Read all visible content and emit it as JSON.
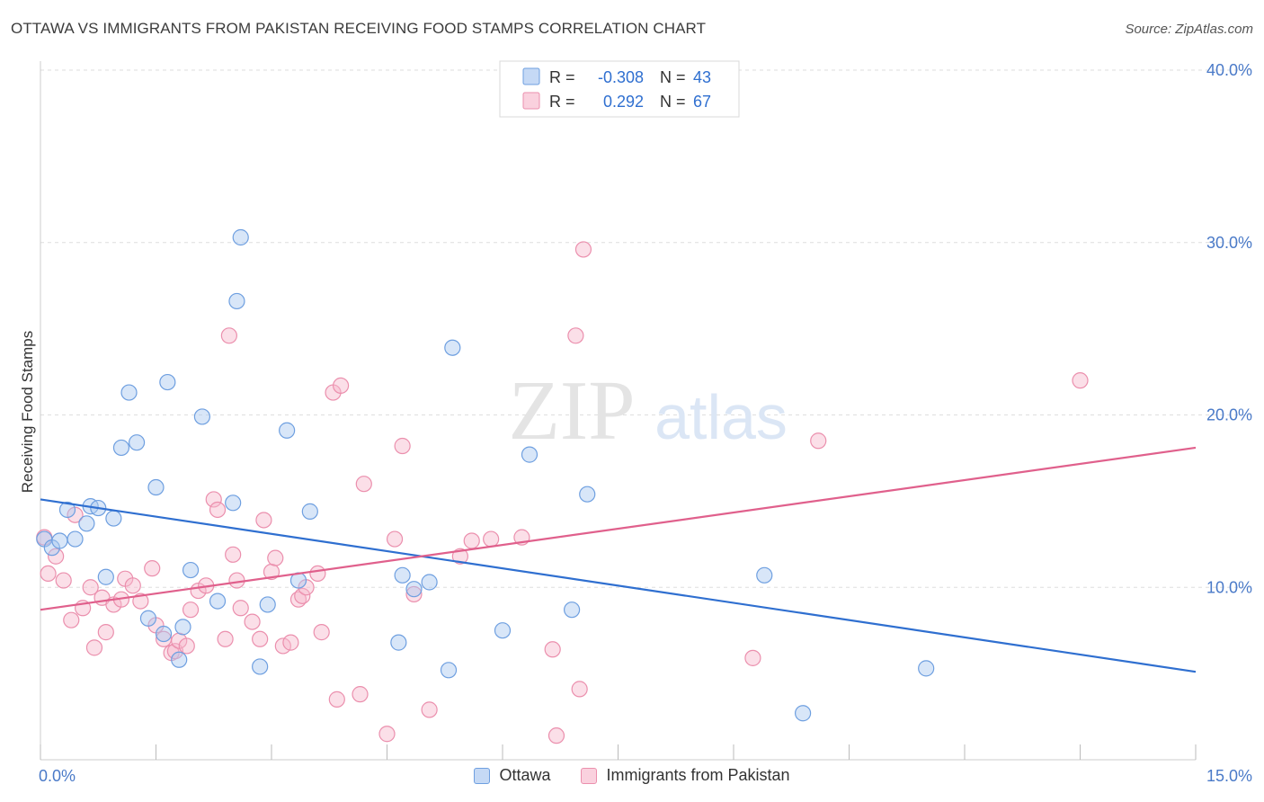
{
  "title": "OTTAWA VS IMMIGRANTS FROM PAKISTAN RECEIVING FOOD STAMPS CORRELATION CHART",
  "source": "Source: ZipAtlas.com",
  "watermark": {
    "zip": "ZIP",
    "atlas": "atlas"
  },
  "colors": {
    "blue_fill": "#a9c8f0",
    "blue_stroke": "#6e9fe0",
    "blue_line": "#2f6fd0",
    "pink_fill": "#f7b9cc",
    "pink_stroke": "#eb8fad",
    "pink_line": "#e0608c",
    "axis_text": "#4a7ac8",
    "grid": "#dedede"
  },
  "chart_data": {
    "type": "scatter",
    "title": "OTTAWA VS IMMIGRANTS FROM PAKISTAN RECEIVING FOOD STAMPS CORRELATION CHART",
    "xlabel": "",
    "ylabel": "Receiving Food Stamps",
    "xlim": [
      0,
      15
    ],
    "ylim": [
      0,
      40
    ],
    "x_tick_labels": [
      "0.0%",
      "15.0%"
    ],
    "y_ticks": [
      10,
      20,
      30,
      40
    ],
    "y_tick_labels": [
      "10.0%",
      "20.0%",
      "30.0%",
      "40.0%"
    ],
    "grid": true,
    "legend": [
      {
        "series": "Ottawa",
        "r_label": "R =",
        "r_value": "-0.308",
        "n_label": "N =",
        "n_value": "43"
      },
      {
        "series": "Immigrants from Pakistan",
        "r_label": "R =",
        "r_value": "0.292",
        "n_label": "N =",
        "n_value": "67"
      }
    ],
    "series": [
      {
        "name": "Ottawa",
        "color": "#6e9fe0",
        "trend": {
          "x0": 0,
          "y0": 15.1,
          "x1": 15,
          "y1": 5.1
        },
        "points": [
          [
            0.05,
            12.8
          ],
          [
            0.15,
            12.3
          ],
          [
            0.25,
            12.7
          ],
          [
            0.35,
            14.5
          ],
          [
            0.45,
            12.8
          ],
          [
            0.6,
            13.7
          ],
          [
            0.65,
            14.7
          ],
          [
            0.75,
            14.6
          ],
          [
            0.85,
            10.6
          ],
          [
            0.95,
            14.0
          ],
          [
            1.05,
            18.1
          ],
          [
            1.15,
            21.3
          ],
          [
            1.25,
            18.4
          ],
          [
            1.4,
            8.2
          ],
          [
            1.5,
            15.8
          ],
          [
            1.6,
            7.3
          ],
          [
            1.65,
            21.9
          ],
          [
            1.8,
            5.8
          ],
          [
            1.85,
            7.7
          ],
          [
            1.95,
            11.0
          ],
          [
            2.1,
            19.9
          ],
          [
            2.3,
            9.2
          ],
          [
            2.5,
            14.9
          ],
          [
            2.55,
            26.6
          ],
          [
            2.6,
            30.3
          ],
          [
            2.85,
            5.4
          ],
          [
            2.95,
            9.0
          ],
          [
            3.2,
            19.1
          ],
          [
            3.35,
            10.4
          ],
          [
            3.5,
            14.4
          ],
          [
            4.65,
            6.8
          ],
          [
            4.7,
            10.7
          ],
          [
            4.85,
            9.9
          ],
          [
            5.05,
            10.3
          ],
          [
            5.3,
            5.2
          ],
          [
            5.35,
            23.9
          ],
          [
            6.0,
            7.5
          ],
          [
            6.35,
            17.7
          ],
          [
            6.9,
            8.7
          ],
          [
            7.1,
            15.4
          ],
          [
            9.4,
            10.7
          ],
          [
            9.9,
            2.7
          ],
          [
            11.5,
            5.3
          ]
        ]
      },
      {
        "name": "Immigrants from Pakistan",
        "color": "#eb8fad",
        "trend": {
          "x0": 0,
          "y0": 8.7,
          "x1": 15,
          "y1": 18.1
        },
        "points": [
          [
            0.05,
            12.9
          ],
          [
            0.1,
            10.8
          ],
          [
            0.2,
            11.8
          ],
          [
            0.3,
            10.4
          ],
          [
            0.4,
            8.1
          ],
          [
            0.45,
            14.2
          ],
          [
            0.55,
            8.8
          ],
          [
            0.65,
            10.0
          ],
          [
            0.7,
            6.5
          ],
          [
            0.8,
            9.4
          ],
          [
            0.85,
            7.4
          ],
          [
            0.95,
            9.0
          ],
          [
            1.05,
            9.3
          ],
          [
            1.1,
            10.5
          ],
          [
            1.2,
            10.1
          ],
          [
            1.3,
            9.2
          ],
          [
            1.45,
            11.1
          ],
          [
            1.5,
            7.8
          ],
          [
            1.6,
            7.0
          ],
          [
            1.7,
            6.2
          ],
          [
            1.75,
            6.3
          ],
          [
            1.8,
            6.9
          ],
          [
            1.9,
            6.6
          ],
          [
            1.95,
            8.7
          ],
          [
            2.05,
            9.8
          ],
          [
            2.15,
            10.1
          ],
          [
            2.25,
            15.1
          ],
          [
            2.3,
            14.5
          ],
          [
            2.4,
            7.0
          ],
          [
            2.45,
            24.6
          ],
          [
            2.5,
            11.9
          ],
          [
            2.55,
            10.4
          ],
          [
            2.6,
            8.8
          ],
          [
            2.75,
            8.0
          ],
          [
            2.85,
            7.0
          ],
          [
            2.9,
            13.9
          ],
          [
            3.0,
            10.9
          ],
          [
            3.05,
            11.7
          ],
          [
            3.15,
            6.6
          ],
          [
            3.25,
            6.8
          ],
          [
            3.35,
            9.3
          ],
          [
            3.4,
            9.5
          ],
          [
            3.45,
            10.0
          ],
          [
            3.6,
            10.8
          ],
          [
            3.65,
            7.4
          ],
          [
            3.8,
            21.3
          ],
          [
            3.85,
            3.5
          ],
          [
            3.9,
            21.7
          ],
          [
            4.15,
            3.8
          ],
          [
            4.2,
            16.0
          ],
          [
            4.5,
            1.5
          ],
          [
            4.6,
            12.8
          ],
          [
            4.7,
            18.2
          ],
          [
            4.85,
            9.6
          ],
          [
            5.05,
            2.9
          ],
          [
            5.45,
            11.8
          ],
          [
            5.6,
            12.7
          ],
          [
            5.85,
            12.8
          ],
          [
            6.25,
            12.9
          ],
          [
            6.65,
            6.4
          ],
          [
            6.7,
            1.4
          ],
          [
            6.95,
            24.6
          ],
          [
            7.0,
            4.1
          ],
          [
            7.05,
            29.6
          ],
          [
            9.25,
            5.9
          ],
          [
            10.1,
            18.5
          ],
          [
            13.5,
            22.0
          ]
        ]
      }
    ]
  }
}
